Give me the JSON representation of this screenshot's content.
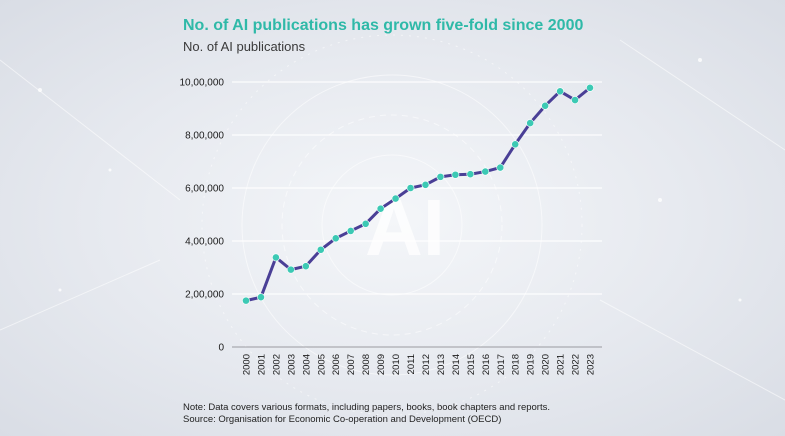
{
  "title": "No. of AI publications has grown five-fold since 2000",
  "subtitle": "No. of AI publications",
  "watermark": "AI",
  "note": "Note: Data covers various formats, including papers, books, book chapters and reports.",
  "source": "Source: Organisation for Economic Co-operation and Development (OECD)",
  "colors": {
    "title": "#2fb9a8",
    "line": "#4a3f96",
    "marker": "#3cc9b4"
  },
  "chart_data": {
    "type": "line",
    "title": "No. of AI publications has grown five-fold since 2000",
    "ylabel": "No. of AI publications",
    "xlabel": "",
    "x": [
      "2000",
      "2001",
      "2002",
      "2003",
      "2004",
      "2005",
      "2006",
      "2007",
      "2008",
      "2009",
      "2010",
      "2011",
      "2012",
      "2013",
      "2014",
      "2015",
      "2016",
      "2017",
      "2018",
      "2019",
      "2020",
      "2021",
      "2022",
      "2023"
    ],
    "values": [
      175000,
      188000,
      338000,
      292000,
      305000,
      367000,
      410000,
      438000,
      465000,
      522000,
      560000,
      600000,
      612000,
      642000,
      650000,
      652000,
      662000,
      677000,
      765000,
      845000,
      910000,
      965000,
      932000,
      978000
    ],
    "yticks": [
      0,
      200000,
      400000,
      600000,
      800000,
      1000000
    ],
    "yticklabels": [
      "0",
      "2,00,000",
      "4,00,000",
      "6,00,000",
      "8,00,000",
      "10,00,000"
    ],
    "ylim": [
      0,
      1000000
    ],
    "grid": true
  }
}
